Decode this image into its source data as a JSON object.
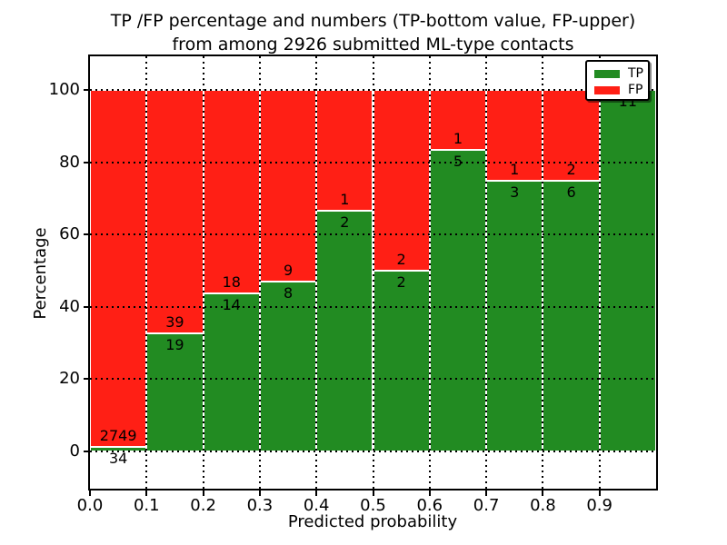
{
  "title": {
    "line1": "TP /FP percentage and numbers (TP-bottom value, FP-upper)",
    "line2": "from among 2926 submitted ML-type contacts"
  },
  "axes": {
    "ylabel": "Percentage",
    "xlabel": "Predicted probability",
    "ytick_labels": [
      "0",
      "20",
      "40",
      "60",
      "80",
      "100"
    ],
    "ytick_values": [
      0,
      20,
      40,
      60,
      80,
      100
    ],
    "xtick_labels": [
      "0.0",
      "0.1",
      "0.2",
      "0.3",
      "0.4",
      "0.5",
      "0.6",
      "0.7",
      "0.8",
      "0.9"
    ],
    "xtick_values": [
      0.0,
      0.1,
      0.2,
      0.3,
      0.4,
      0.5,
      0.6,
      0.7,
      0.8,
      0.9
    ],
    "xlim": [
      0.0,
      1.0
    ],
    "ylim": [
      -10.5,
      109.5
    ],
    "grid": "dotted"
  },
  "legend": {
    "position": "upper right",
    "items": [
      {
        "label": "TP",
        "color": "#228b22"
      },
      {
        "label": "FP",
        "color": "#ff1f15"
      }
    ]
  },
  "colors": {
    "tp": "#228b22",
    "fp": "#ff1f15",
    "background": "#ffffff",
    "grid": "#000000",
    "bar_edge": "#ffffff"
  },
  "chart_data": {
    "type": "bar",
    "stacked": true,
    "normalized": "each bar scaled to 100% of bin total; annotations show raw counts (TP below boundary, FP above)",
    "title": "TP /FP percentage and numbers (TP-bottom value, FP-upper) from among 2926 submitted ML-type contacts",
    "xlabel": "Predicted probability",
    "ylabel": "Percentage",
    "total_contacts": 2926,
    "bin_width": 0.1,
    "categories": [
      "0.0-0.1",
      "0.1-0.2",
      "0.2-0.3",
      "0.3-0.4",
      "0.4-0.5",
      "0.5-0.6",
      "0.6-0.7",
      "0.7-0.8",
      "0.8-0.9",
      "0.9-1.0"
    ],
    "series": [
      {
        "name": "TP",
        "color": "#228b22",
        "counts": [
          34,
          19,
          14,
          8,
          2,
          2,
          5,
          3,
          6,
          11
        ]
      },
      {
        "name": "FP",
        "color": "#ff1f15",
        "counts": [
          2749,
          39,
          18,
          9,
          1,
          2,
          1,
          1,
          2,
          0
        ]
      }
    ],
    "tp_percent": [
      1.22,
      32.76,
      43.75,
      47.06,
      66.67,
      50.0,
      83.33,
      75.0,
      75.0,
      100.0
    ],
    "xlim": [
      0.0,
      1.0
    ],
    "ylim": [
      -10.5,
      109.5
    ]
  }
}
